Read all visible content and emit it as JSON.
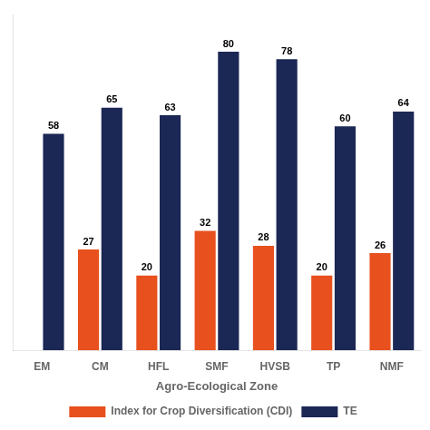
{
  "chart_data": {
    "type": "bar",
    "categories": [
      "EM",
      "CM",
      "HFL",
      "SMF",
      "HVSB",
      "TP",
      "NMF"
    ],
    "series": [
      {
        "name": "Index for Crop Diversification (CDI)",
        "color": "#E8501E",
        "values": [
          0,
          27,
          20,
          32,
          28,
          20,
          26
        ],
        "value_labels": [
          null,
          "27",
          "20",
          "32",
          "28",
          "20",
          "26"
        ]
      },
      {
        "name": "TE",
        "color": "#1B2754",
        "values": [
          58,
          65,
          63,
          80,
          78,
          60,
          64
        ]
      }
    ],
    "xlabel": "Agro-Ecological Zone",
    "ylim": [
      0,
      90
    ],
    "yticks": [],
    "grid": false,
    "legend": "bottom",
    "data_labels": true,
    "tick_labels": "x"
  }
}
